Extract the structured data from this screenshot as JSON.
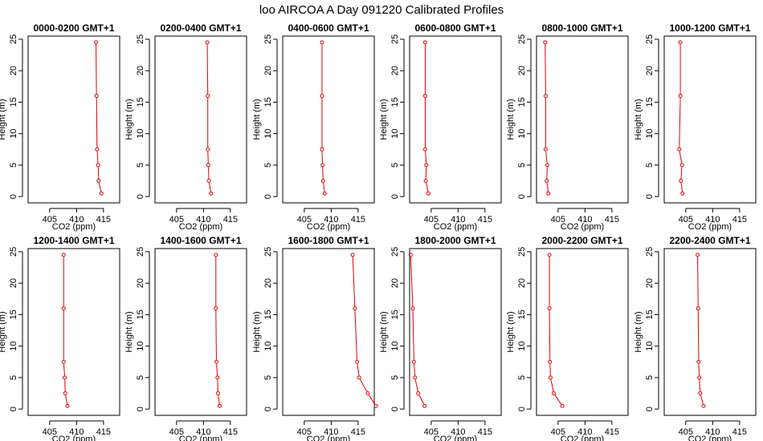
{
  "figure": {
    "title": "loo AIRCOA A  Day 091220  Calibrated Profiles"
  },
  "style": {
    "series_color": "#dd0000",
    "axis_color": "#000000",
    "background": "#ffffff"
  },
  "chart_data": [
    {
      "type": "line",
      "title": "0000-0200 GMT+1",
      "xlabel": "CO2 (ppm)",
      "ylabel": "Height (m)",
      "xlim": [
        401,
        418
      ],
      "ylim": [
        -1,
        25.5
      ],
      "xticks": [
        405,
        410,
        415
      ],
      "yticks": [
        0,
        5,
        10,
        15,
        20,
        25
      ],
      "series": [
        {
          "x": [
            414.6,
            414.1,
            414.0,
            413.8,
            413.7,
            413.6
          ],
          "y": [
            0.5,
            2.5,
            5,
            7.5,
            16,
            24.5
          ]
        }
      ]
    },
    {
      "type": "line",
      "title": "0200-0400 GMT+1",
      "xlabel": "CO2 (ppm)",
      "ylabel": "Height (m)",
      "xlim": [
        401,
        418
      ],
      "ylim": [
        -1,
        25.5
      ],
      "xticks": [
        405,
        410,
        415
      ],
      "yticks": [
        0,
        5,
        10,
        15,
        20,
        25
      ],
      "series": [
        {
          "x": [
            411.4,
            411.0,
            410.9,
            410.8,
            410.8,
            410.7
          ],
          "y": [
            0.5,
            2.5,
            5,
            7.5,
            16,
            24.5
          ]
        }
      ]
    },
    {
      "type": "line",
      "title": "0400-0600 GMT+1",
      "xlabel": "CO2 (ppm)",
      "ylabel": "Height (m)",
      "xlim": [
        401,
        418
      ],
      "ylim": [
        -1,
        25.5
      ],
      "xticks": [
        405,
        410,
        415
      ],
      "yticks": [
        0,
        5,
        10,
        15,
        20,
        25
      ],
      "series": [
        {
          "x": [
            408.8,
            408.5,
            408.4,
            408.3,
            408.3,
            408.3
          ],
          "y": [
            0.5,
            2.5,
            5,
            7.5,
            16,
            24.5
          ]
        }
      ]
    },
    {
      "type": "line",
      "title": "0600-0800 GMT+1",
      "xlabel": "CO2 (ppm)",
      "ylabel": "Height (m)",
      "xlim": [
        401,
        418
      ],
      "ylim": [
        -1,
        25.5
      ],
      "xticks": [
        405,
        410,
        415
      ],
      "yticks": [
        0,
        5,
        10,
        15,
        20,
        25
      ],
      "series": [
        {
          "x": [
            404.5,
            404.0,
            404.1,
            403.9,
            403.9,
            403.9
          ],
          "y": [
            0.5,
            2.5,
            5,
            7.5,
            16,
            24.5
          ]
        }
      ]
    },
    {
      "type": "line",
      "title": "0800-1000 GMT+1",
      "xlabel": "CO2 (ppm)",
      "ylabel": "Height (m)",
      "xlim": [
        401,
        418
      ],
      "ylim": [
        -1,
        25.5
      ],
      "xticks": [
        405,
        410,
        415
      ],
      "yticks": [
        0,
        5,
        10,
        15,
        20,
        25
      ],
      "series": [
        {
          "x": [
            403.2,
            402.9,
            403.0,
            402.7,
            402.7,
            402.6
          ],
          "y": [
            0.5,
            2.5,
            5,
            7.5,
            16,
            24.5
          ]
        }
      ]
    },
    {
      "type": "line",
      "title": "1000-1200 GMT+1",
      "xlabel": "CO2 (ppm)",
      "ylabel": "Height (m)",
      "xlim": [
        401,
        418
      ],
      "ylim": [
        -1,
        25.5
      ],
      "xticks": [
        405,
        410,
        415
      ],
      "yticks": [
        0,
        5,
        10,
        15,
        20,
        25
      ],
      "series": [
        {
          "x": [
            404.4,
            404.1,
            404.3,
            403.8,
            404.0,
            404.0
          ],
          "y": [
            0.5,
            2.5,
            5,
            7.5,
            16,
            24.5
          ]
        }
      ]
    },
    {
      "type": "line",
      "title": "1200-1400 GMT+1",
      "xlabel": "CO2 (ppm)",
      "ylabel": "Height (m)",
      "xlim": [
        401,
        418
      ],
      "ylim": [
        -1,
        25.5
      ],
      "xticks": [
        405,
        410,
        415
      ],
      "yticks": [
        0,
        5,
        10,
        15,
        20,
        25
      ],
      "series": [
        {
          "x": [
            408.3,
            407.9,
            407.8,
            407.6,
            407.6,
            407.6
          ],
          "y": [
            0.5,
            2.5,
            5,
            7.5,
            16,
            24.5
          ]
        }
      ]
    },
    {
      "type": "line",
      "title": "1400-1600 GMT+1",
      "xlabel": "CO2 (ppm)",
      "ylabel": "Height (m)",
      "xlim": [
        401,
        418
      ],
      "ylim": [
        -1,
        25.5
      ],
      "xticks": [
        405,
        410,
        415
      ],
      "yticks": [
        0,
        5,
        10,
        15,
        20,
        25
      ],
      "series": [
        {
          "x": [
            413.0,
            412.7,
            412.6,
            412.4,
            412.3,
            412.3
          ],
          "y": [
            0.5,
            2.5,
            5,
            7.5,
            16,
            24.5
          ]
        }
      ]
    },
    {
      "type": "line",
      "title": "1600-1800 GMT+1",
      "xlabel": "CO2 (ppm)",
      "ylabel": "Height (m)",
      "xlim": [
        401,
        418
      ],
      "ylim": [
        -1,
        25.5
      ],
      "xticks": [
        405,
        410,
        415
      ],
      "yticks": [
        0,
        5,
        10,
        15,
        20,
        25
      ],
      "series": [
        {
          "x": [
            418.3,
            416.8,
            415.2,
            414.8,
            414.4,
            414.0
          ],
          "y": [
            0.5,
            2.5,
            5,
            7.5,
            16,
            24.5
          ]
        }
      ]
    },
    {
      "type": "line",
      "title": "1800-2000 GMT+1",
      "xlabel": "CO2 (ppm)",
      "ylabel": "Height (m)",
      "xlim": [
        401,
        418
      ],
      "ylim": [
        -1,
        25.5
      ],
      "xticks": [
        405,
        410,
        415
      ],
      "yticks": [
        0,
        5,
        10,
        15,
        20,
        25
      ],
      "series": [
        {
          "x": [
            403.8,
            402.6,
            402.0,
            401.8,
            401.6,
            401.2
          ],
          "y": [
            0.5,
            2.5,
            5,
            7.5,
            16,
            24.5
          ]
        }
      ]
    },
    {
      "type": "line",
      "title": "2000-2200 GMT+1",
      "xlabel": "CO2 (ppm)",
      "ylabel": "Height (m)",
      "xlim": [
        401,
        418
      ],
      "ylim": [
        -1,
        25.5
      ],
      "xticks": [
        405,
        410,
        415
      ],
      "yticks": [
        0,
        5,
        10,
        15,
        20,
        25
      ],
      "series": [
        {
          "x": [
            405.8,
            404.2,
            403.6,
            403.5,
            403.4,
            403.4
          ],
          "y": [
            0.5,
            2.5,
            5,
            7.5,
            16,
            24.5
          ]
        }
      ]
    },
    {
      "type": "line",
      "title": "2200-2400 GMT+1",
      "xlabel": "CO2 (ppm)",
      "ylabel": "Height (m)",
      "xlim": [
        401,
        418
      ],
      "ylim": [
        -1,
        25.5
      ],
      "xticks": [
        405,
        410,
        415
      ],
      "yticks": [
        0,
        5,
        10,
        15,
        20,
        25
      ],
      "series": [
        {
          "x": [
            408.3,
            407.7,
            407.5,
            407.4,
            407.3,
            407.2
          ],
          "y": [
            0.5,
            2.5,
            5,
            7.5,
            16,
            24.5
          ]
        }
      ]
    }
  ]
}
